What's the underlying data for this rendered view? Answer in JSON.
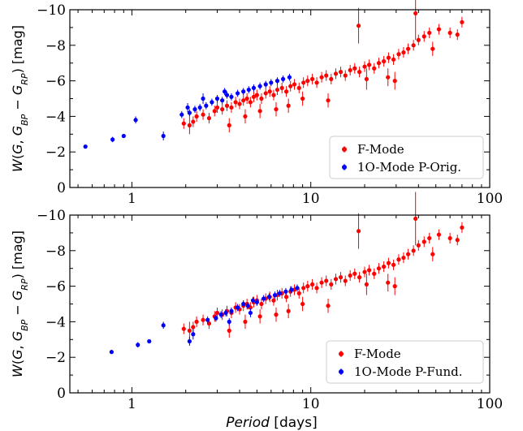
{
  "chart_data": [
    {
      "type": "scatter",
      "panel": "top",
      "xscale": "log",
      "xlim": [
        0.45,
        100
      ],
      "ylim": [
        0,
        -10
      ],
      "y_inverted": true,
      "ylabel": "W(G, G_BP − G_RP) [mag]",
      "xlabel": "",
      "x_ticks": [
        1,
        10,
        100
      ],
      "x_tick_labels": [
        "1",
        "10",
        "100"
      ],
      "y_ticks": [
        0,
        -2,
        -4,
        -6,
        -8,
        -10
      ],
      "y_tick_labels": [
        "0",
        "−2",
        "−4",
        "−6",
        "−8",
        "−10"
      ],
      "legend_placement": "lower-right",
      "series": [
        {
          "name": "F-Mode",
          "color": "#ff0000",
          "points": [
            [
              1.95,
              -3.6,
              0.3
            ],
            [
              2.1,
              -3.5,
              0.5
            ],
            [
              2.2,
              -3.7,
              0.3
            ],
            [
              2.3,
              -4.0,
              0.3
            ],
            [
              2.5,
              -4.1,
              0.3
            ],
            [
              2.7,
              -3.9,
              0.3
            ],
            [
              2.9,
              -4.3,
              0.3
            ],
            [
              3.0,
              -4.5,
              0.3
            ],
            [
              3.2,
              -4.4,
              0.3
            ],
            [
              3.4,
              -4.6,
              0.3
            ],
            [
              3.6,
              -4.5,
              0.3
            ],
            [
              3.8,
              -4.8,
              0.3
            ],
            [
              4.0,
              -4.7,
              0.3
            ],
            [
              4.2,
              -4.9,
              0.3
            ],
            [
              4.4,
              -5.0,
              0.3
            ],
            [
              4.6,
              -4.8,
              0.3
            ],
            [
              4.8,
              -5.1,
              0.3
            ],
            [
              5.0,
              -5.2,
              0.3
            ],
            [
              5.3,
              -5.0,
              0.3
            ],
            [
              5.6,
              -5.3,
              0.3
            ],
            [
              5.9,
              -5.4,
              0.3
            ],
            [
              6.2,
              -5.2,
              0.3
            ],
            [
              6.5,
              -5.5,
              0.3
            ],
            [
              6.9,
              -5.6,
              0.3
            ],
            [
              7.3,
              -5.4,
              0.3
            ],
            [
              7.7,
              -5.7,
              0.3
            ],
            [
              8.1,
              -5.8,
              0.3
            ],
            [
              8.6,
              -5.6,
              0.3
            ],
            [
              9.1,
              -5.9,
              0.3
            ],
            [
              9.6,
              -6.0,
              0.3
            ],
            [
              10.2,
              -6.1,
              0.3
            ],
            [
              10.8,
              -5.9,
              0.3
            ],
            [
              11.5,
              -6.2,
              0.3
            ],
            [
              12.2,
              -6.3,
              0.3
            ],
            [
              13.0,
              -6.1,
              0.3
            ],
            [
              13.8,
              -6.4,
              0.3
            ],
            [
              14.7,
              -6.5,
              0.3
            ],
            [
              15.6,
              -6.3,
              0.3
            ],
            [
              16.6,
              -6.6,
              0.3
            ],
            [
              17.6,
              -6.7,
              0.3
            ],
            [
              18.7,
              -6.5,
              0.3
            ],
            [
              20.0,
              -6.8,
              0.3
            ],
            [
              21.2,
              -6.9,
              0.3
            ],
            [
              22.6,
              -6.7,
              0.3
            ],
            [
              24.0,
              -7.0,
              0.3
            ],
            [
              25.6,
              -7.1,
              0.3
            ],
            [
              27.2,
              -7.3,
              0.3
            ],
            [
              29.0,
              -7.2,
              0.3
            ],
            [
              31.0,
              -7.5,
              0.3
            ],
            [
              33.0,
              -7.6,
              0.3
            ],
            [
              35.0,
              -7.8,
              0.3
            ],
            [
              37.5,
              -8.0,
              0.3
            ],
            [
              40.0,
              -8.3,
              0.3
            ],
            [
              43.0,
              -8.5,
              0.3
            ],
            [
              46.0,
              -8.7,
              0.3
            ],
            [
              52.0,
              -8.9,
              0.3
            ],
            [
              60.0,
              -8.7,
              0.3
            ],
            [
              66.0,
              -8.6,
              0.3
            ],
            [
              70.0,
              -9.3,
              0.3
            ],
            [
              3.5,
              -3.5,
              0.4
            ],
            [
              4.3,
              -4.0,
              0.4
            ],
            [
              5.2,
              -4.3,
              0.4
            ],
            [
              6.4,
              -4.4,
              0.4
            ],
            [
              7.5,
              -4.6,
              0.4
            ],
            [
              9.0,
              -5.0,
              0.4
            ],
            [
              12.5,
              -4.9,
              0.4
            ],
            [
              18.5,
              -9.1,
              1.0
            ],
            [
              20.5,
              -6.1,
              0.6
            ],
            [
              27.0,
              -6.2,
              0.5
            ],
            [
              38.5,
              -9.8,
              1.5
            ],
            [
              48.0,
              -7.8,
              0.4
            ],
            [
              29.5,
              -6.0,
              0.5
            ]
          ]
        },
        {
          "name": "1O-Mode P-Orig.",
          "color": "#0000ff",
          "points": [
            [
              0.55,
              -2.3,
              0.1
            ],
            [
              0.78,
              -2.7,
              0.15
            ],
            [
              0.9,
              -2.9,
              0.1
            ],
            [
              1.05,
              -3.8,
              0.2
            ],
            [
              1.5,
              -2.9,
              0.25
            ],
            [
              1.9,
              -4.1,
              0.2
            ],
            [
              2.1,
              -4.2,
              0.2
            ],
            [
              2.25,
              -4.4,
              0.2
            ],
            [
              2.4,
              -4.5,
              0.2
            ],
            [
              2.6,
              -4.6,
              0.2
            ],
            [
              2.8,
              -4.8,
              0.2
            ],
            [
              3.0,
              -5.0,
              0.2
            ],
            [
              3.2,
              -4.9,
              0.2
            ],
            [
              3.4,
              -5.2,
              0.2
            ],
            [
              3.6,
              -5.1,
              0.2
            ],
            [
              3.9,
              -5.3,
              0.2
            ],
            [
              4.2,
              -5.4,
              0.2
            ],
            [
              4.5,
              -5.5,
              0.2
            ],
            [
              4.8,
              -5.6,
              0.2
            ],
            [
              5.2,
              -5.7,
              0.2
            ],
            [
              5.6,
              -5.8,
              0.2
            ],
            [
              6.0,
              -5.9,
              0.2
            ],
            [
              6.5,
              -6.0,
              0.2
            ],
            [
              7.0,
              -6.1,
              0.2
            ],
            [
              7.6,
              -6.2,
              0.2
            ],
            [
              2.5,
              -5.0,
              0.3
            ],
            [
              3.3,
              -5.4,
              0.2
            ],
            [
              2.05,
              -4.5,
              0.25
            ]
          ]
        }
      ]
    },
    {
      "type": "scatter",
      "panel": "bottom",
      "xscale": "log",
      "xlim": [
        0.45,
        100
      ],
      "ylim": [
        0,
        -10
      ],
      "y_inverted": true,
      "ylabel": "W(G, G_BP − G_RP) [mag]",
      "xlabel": "Period [days]",
      "x_ticks": [
        1,
        10,
        100
      ],
      "x_tick_labels": [
        "1",
        "10",
        "100"
      ],
      "y_ticks": [
        0,
        -2,
        -4,
        -6,
        -8,
        -10
      ],
      "y_tick_labels": [
        "0",
        "−2",
        "−4",
        "−6",
        "−8",
        "−10"
      ],
      "legend_placement": "lower-right",
      "series": [
        {
          "name": "F-Mode",
          "color": "#ff0000",
          "points": [
            [
              1.95,
              -3.6,
              0.3
            ],
            [
              2.1,
              -3.5,
              0.5
            ],
            [
              2.2,
              -3.7,
              0.3
            ],
            [
              2.3,
              -4.0,
              0.3
            ],
            [
              2.5,
              -4.1,
              0.3
            ],
            [
              2.7,
              -3.9,
              0.3
            ],
            [
              2.9,
              -4.3,
              0.3
            ],
            [
              3.0,
              -4.5,
              0.3
            ],
            [
              3.2,
              -4.4,
              0.3
            ],
            [
              3.4,
              -4.6,
              0.3
            ],
            [
              3.6,
              -4.5,
              0.3
            ],
            [
              3.8,
              -4.8,
              0.3
            ],
            [
              4.0,
              -4.7,
              0.3
            ],
            [
              4.2,
              -4.9,
              0.3
            ],
            [
              4.4,
              -5.0,
              0.3
            ],
            [
              4.6,
              -4.8,
              0.3
            ],
            [
              4.8,
              -5.1,
              0.3
            ],
            [
              5.0,
              -5.2,
              0.3
            ],
            [
              5.3,
              -5.0,
              0.3
            ],
            [
              5.6,
              -5.3,
              0.3
            ],
            [
              5.9,
              -5.4,
              0.3
            ],
            [
              6.2,
              -5.2,
              0.3
            ],
            [
              6.5,
              -5.5,
              0.3
            ],
            [
              6.9,
              -5.6,
              0.3
            ],
            [
              7.3,
              -5.4,
              0.3
            ],
            [
              7.7,
              -5.7,
              0.3
            ],
            [
              8.1,
              -5.8,
              0.3
            ],
            [
              8.6,
              -5.6,
              0.3
            ],
            [
              9.1,
              -5.9,
              0.3
            ],
            [
              9.6,
              -6.0,
              0.3
            ],
            [
              10.2,
              -6.1,
              0.3
            ],
            [
              10.8,
              -5.9,
              0.3
            ],
            [
              11.5,
              -6.2,
              0.3
            ],
            [
              12.2,
              -6.3,
              0.3
            ],
            [
              13.0,
              -6.1,
              0.3
            ],
            [
              13.8,
              -6.4,
              0.3
            ],
            [
              14.7,
              -6.5,
              0.3
            ],
            [
              15.6,
              -6.3,
              0.3
            ],
            [
              16.6,
              -6.6,
              0.3
            ],
            [
              17.6,
              -6.7,
              0.3
            ],
            [
              18.7,
              -6.5,
              0.3
            ],
            [
              20.0,
              -6.8,
              0.3
            ],
            [
              21.2,
              -6.9,
              0.3
            ],
            [
              22.6,
              -6.7,
              0.3
            ],
            [
              24.0,
              -7.0,
              0.3
            ],
            [
              25.6,
              -7.1,
              0.3
            ],
            [
              27.2,
              -7.3,
              0.3
            ],
            [
              29.0,
              -7.2,
              0.3
            ],
            [
              31.0,
              -7.5,
              0.3
            ],
            [
              33.0,
              -7.6,
              0.3
            ],
            [
              35.0,
              -7.8,
              0.3
            ],
            [
              37.5,
              -8.0,
              0.3
            ],
            [
              40.0,
              -8.3,
              0.3
            ],
            [
              43.0,
              -8.5,
              0.3
            ],
            [
              46.0,
              -8.7,
              0.3
            ],
            [
              52.0,
              -8.9,
              0.3
            ],
            [
              60.0,
              -8.7,
              0.3
            ],
            [
              66.0,
              -8.6,
              0.3
            ],
            [
              70.0,
              -9.3,
              0.3
            ],
            [
              3.5,
              -3.5,
              0.4
            ],
            [
              4.3,
              -4.0,
              0.4
            ],
            [
              5.2,
              -4.3,
              0.4
            ],
            [
              6.4,
              -4.4,
              0.4
            ],
            [
              7.5,
              -4.6,
              0.4
            ],
            [
              9.0,
              -5.0,
              0.4
            ],
            [
              12.5,
              -4.9,
              0.4
            ],
            [
              18.5,
              -9.1,
              1.0
            ],
            [
              20.5,
              -6.1,
              0.6
            ],
            [
              27.0,
              -6.2,
              0.5
            ],
            [
              38.5,
              -9.8,
              1.5
            ],
            [
              48.0,
              -7.8,
              0.4
            ],
            [
              29.5,
              -6.0,
              0.5
            ]
          ]
        },
        {
          "name": "1O-Mode P-Fund.",
          "color": "#0000ff",
          "points": [
            [
              0.77,
              -2.3,
              0.1
            ],
            [
              1.08,
              -2.7,
              0.15
            ],
            [
              1.25,
              -2.9,
              0.1
            ],
            [
              1.5,
              -3.8,
              0.2
            ],
            [
              2.1,
              -2.9,
              0.25
            ],
            [
              2.65,
              -4.1,
              0.2
            ],
            [
              2.95,
              -4.2,
              0.2
            ],
            [
              3.15,
              -4.4,
              0.2
            ],
            [
              3.35,
              -4.5,
              0.2
            ],
            [
              3.6,
              -4.6,
              0.2
            ],
            [
              3.9,
              -4.8,
              0.2
            ],
            [
              4.2,
              -5.0,
              0.2
            ],
            [
              4.45,
              -4.9,
              0.2
            ],
            [
              4.75,
              -5.2,
              0.2
            ],
            [
              5.0,
              -5.1,
              0.2
            ],
            [
              5.45,
              -5.3,
              0.2
            ],
            [
              5.85,
              -5.4,
              0.2
            ],
            [
              6.3,
              -5.5,
              0.2
            ],
            [
              6.7,
              -5.6,
              0.2
            ],
            [
              7.25,
              -5.7,
              0.2
            ],
            [
              7.8,
              -5.8,
              0.2
            ],
            [
              8.4,
              -5.9,
              0.2
            ],
            [
              2.2,
              -3.3,
              0.3
            ],
            [
              3.5,
              -4.0,
              0.2
            ],
            [
              4.6,
              -4.5,
              0.25
            ]
          ]
        }
      ]
    }
  ]
}
